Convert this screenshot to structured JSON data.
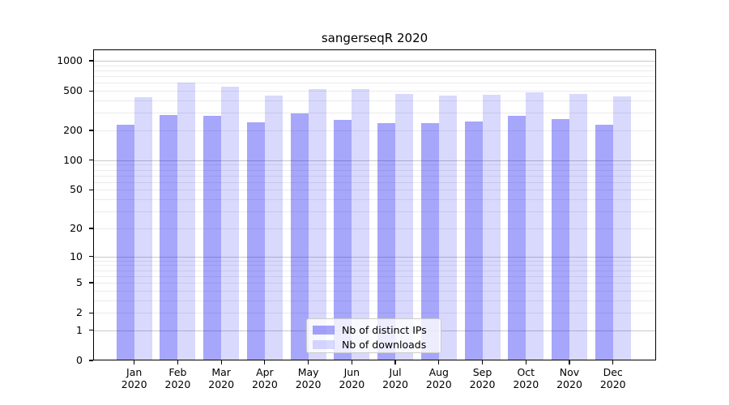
{
  "chart_data": {
    "type": "bar",
    "title": "sangerseqR 2020",
    "scale": "log1p",
    "categories": [
      "Jan",
      "Feb",
      "Mar",
      "Apr",
      "May",
      "Jun",
      "Jul",
      "Aug",
      "Sep",
      "Oct",
      "Nov",
      "Dec"
    ],
    "category_year": "2020",
    "series": [
      {
        "name": "Nb of distinct IPs",
        "color": "rgba(0,0,244,0.35)",
        "values": [
          230,
          287,
          280,
          242,
          297,
          255,
          236,
          236,
          247,
          278,
          260,
          229
        ]
      },
      {
        "name": "Nb of downloads",
        "color": "rgba(0,0,244,0.15)",
        "values": [
          433,
          604,
          546,
          452,
          524,
          517,
          467,
          446,
          456,
          483,
          461,
          439
        ]
      }
    ],
    "y_ticks": [
      0,
      1,
      2,
      5,
      10,
      20,
      50,
      100,
      200,
      500,
      1000
    ],
    "y_major_grid": [
      1,
      10,
      100,
      1000
    ],
    "y_minor_grid": [
      3,
      4,
      6,
      7,
      8,
      9,
      30,
      40,
      60,
      70,
      80,
      90,
      300,
      400,
      600,
      700,
      800,
      900
    ],
    "ylim": [
      0,
      1290
    ],
    "grid": true,
    "legend_position": "lower center",
    "colors": {
      "major_grid": "#c9c9c9",
      "minor_grid": "#ebebeb",
      "spine": "#000000",
      "background": "#ffffff"
    }
  }
}
